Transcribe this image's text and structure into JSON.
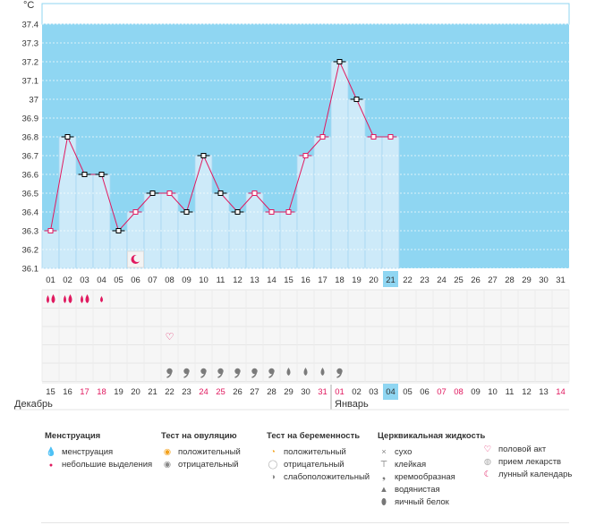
{
  "unit_label": "°C",
  "month_labels": {
    "left": "Декабрь",
    "right": "Январь"
  },
  "chart_data": {
    "type": "line",
    "ylabel": "°C",
    "ylim": [
      36.1,
      37.5
    ],
    "y_ticks": [
      "37.4",
      "37.3",
      "37.2",
      "37.1",
      "37",
      "36.9",
      "36.8",
      "36.7",
      "36.6",
      "36.5",
      "36.4",
      "36.3",
      "36.2",
      "36.1"
    ],
    "cycle_days": [
      "01",
      "02",
      "03",
      "04",
      "05",
      "06",
      "07",
      "08",
      "09",
      "10",
      "11",
      "12",
      "13",
      "14",
      "15",
      "16",
      "17",
      "18",
      "19",
      "20",
      "21",
      "22",
      "23",
      "24",
      "25",
      "26",
      "27",
      "28",
      "29",
      "30",
      "31"
    ],
    "current_cycle_day": "21",
    "series": [
      {
        "values": [
          36.3,
          36.8,
          36.6,
          36.6,
          36.3,
          36.4,
          36.5,
          36.5,
          36.4,
          36.7,
          36.5,
          36.4,
          36.5,
          36.4,
          36.4,
          36.7,
          36.8,
          37.2,
          37.0,
          36.8,
          36.8
        ]
      }
    ],
    "point_styles": [
      "pink",
      "black",
      "black",
      "black",
      "black",
      "pink",
      "black",
      "pink",
      "black",
      "black",
      "black",
      "black",
      "pink",
      "pink",
      "pink",
      "pink",
      "pink",
      "black",
      "black",
      "pink",
      "pink"
    ],
    "colors": {
      "line": "#e0195f",
      "bar": "#cdeaf9",
      "bar_stroke": "#a5d6f0",
      "plot_bg": "#8fd6f2",
      "grid": "#ffffff",
      "today": "#8fd6f2"
    }
  },
  "moon_day": "06",
  "date_row": [
    {
      "d": "15",
      "red": false
    },
    {
      "d": "16",
      "red": false
    },
    {
      "d": "17",
      "red": true
    },
    {
      "d": "18",
      "red": true
    },
    {
      "d": "19",
      "red": false
    },
    {
      "d": "20",
      "red": false
    },
    {
      "d": "21",
      "red": false
    },
    {
      "d": "22",
      "red": false
    },
    {
      "d": "23",
      "red": false
    },
    {
      "d": "24",
      "red": true
    },
    {
      "d": "25",
      "red": true
    },
    {
      "d": "26",
      "red": false
    },
    {
      "d": "27",
      "red": false
    },
    {
      "d": "28",
      "red": false
    },
    {
      "d": "29",
      "red": false
    },
    {
      "d": "30",
      "red": false
    },
    {
      "d": "31",
      "red": true
    },
    {
      "d": "01",
      "red": true
    },
    {
      "d": "02",
      "red": false
    },
    {
      "d": "03",
      "red": false
    },
    {
      "d": "04",
      "red": false,
      "today": true
    },
    {
      "d": "05",
      "red": false
    },
    {
      "d": "06",
      "red": false
    },
    {
      "d": "07",
      "red": true
    },
    {
      "d": "08",
      "red": true
    },
    {
      "d": "09",
      "red": false
    },
    {
      "d": "10",
      "red": false
    },
    {
      "d": "11",
      "red": false
    },
    {
      "d": "12",
      "red": false
    },
    {
      "d": "13",
      "red": false
    },
    {
      "d": "14",
      "red": true
    }
  ],
  "menstruation_marks": [
    "big",
    "big",
    "big",
    "small"
  ],
  "intercourse_day_index": 7,
  "fluid_marks": [
    {
      "i": 7,
      "t": "creamy"
    },
    {
      "i": 8,
      "t": "creamy"
    },
    {
      "i": 9,
      "t": "creamy"
    },
    {
      "i": 10,
      "t": "creamy"
    },
    {
      "i": 11,
      "t": "creamy"
    },
    {
      "i": 12,
      "t": "creamy"
    },
    {
      "i": 13,
      "t": "creamy"
    },
    {
      "i": 14,
      "t": "watery"
    },
    {
      "i": 15,
      "t": "watery"
    },
    {
      "i": 16,
      "t": "watery"
    },
    {
      "i": 17,
      "t": "creamy"
    }
  ],
  "legend": {
    "menstruation": {
      "title": "Менструация",
      "items": [
        "менструация",
        "небольшие выделения"
      ]
    },
    "ovulation": {
      "title": "Тест на овуляцию",
      "items": [
        "положительный",
        "отрицательный"
      ]
    },
    "pregnancy": {
      "title": "Тест на беременность",
      "items": [
        "положительный",
        "отрицательный",
        "слабоположительный"
      ]
    },
    "fluid": {
      "title": "Церквикальная жидкость",
      "items": [
        "сухо",
        "клейкая",
        "кремообразная",
        "водянистая",
        "яичный белок"
      ]
    },
    "other": {
      "items": [
        "половой акт",
        "прием лекарств",
        "лунный календарь"
      ]
    }
  }
}
